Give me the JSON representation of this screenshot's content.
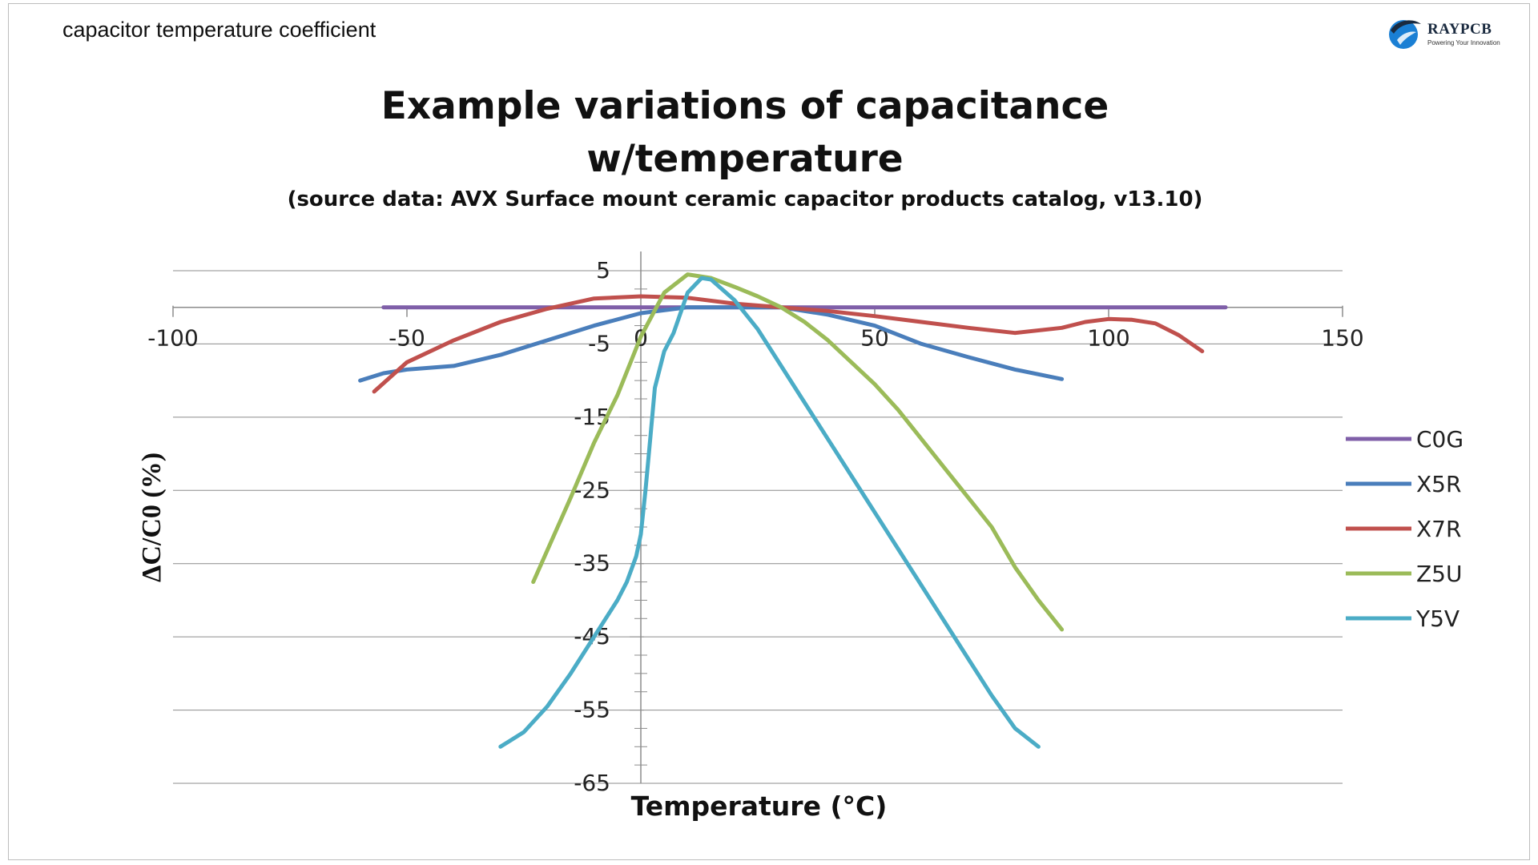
{
  "page": {
    "caption": "capacitor temperature coefficient",
    "brand": {
      "name": "RAYPCB",
      "tagline": "Powering Your Innovation",
      "color": "#1a7fd4"
    }
  },
  "chart_data": {
    "type": "line",
    "title_line1": "Example variations of capacitance",
    "title_line2": "w/temperature",
    "subtitle": "(source data: AVX Surface mount ceramic capacitor products catalog, v13.10)",
    "xlabel": "Temperature (°C)",
    "ylabel": "ΔC/C0 (%)",
    "xlim": [
      -100,
      150
    ],
    "ylim": [
      -65,
      5
    ],
    "xticks": [
      -100,
      -50,
      0,
      50,
      100,
      150
    ],
    "xtick_labels": [
      "-100",
      "-50",
      "0",
      "50",
      "100",
      "150"
    ],
    "yticks": [
      5,
      -5,
      -15,
      -25,
      -35,
      -45,
      -55,
      -65
    ],
    "ytick_labels": [
      "5",
      "-5",
      "-15",
      "-25",
      "-35",
      "-45",
      "-55",
      "-65"
    ],
    "grid": true,
    "legend_position": "right",
    "series": [
      {
        "name": "C0G",
        "color": "#7f5fa8",
        "x": [
          -55,
          0,
          50,
          125
        ],
        "y": [
          0,
          0,
          0,
          0
        ]
      },
      {
        "name": "X5R",
        "color": "#4a7ebb",
        "x": [
          -60,
          -55,
          -50,
          -40,
          -30,
          -20,
          -10,
          0,
          10,
          20,
          30,
          40,
          50,
          60,
          70,
          80,
          90
        ],
        "y": [
          -10,
          -9,
          -8.5,
          -8,
          -6.5,
          -4.5,
          -2.5,
          -0.8,
          0,
          0,
          0,
          -1,
          -2.5,
          -5,
          -6.8,
          -8.5,
          -9.8
        ]
      },
      {
        "name": "X7R",
        "color": "#c0504d",
        "x": [
          -57,
          -50,
          -40,
          -30,
          -20,
          -10,
          0,
          10,
          20,
          30,
          40,
          50,
          60,
          70,
          80,
          90,
          95,
          100,
          105,
          110,
          115,
          120
        ],
        "y": [
          -11.5,
          -7.5,
          -4.5,
          -2,
          -0.2,
          1.2,
          1.5,
          1.3,
          0.5,
          0,
          -0.5,
          -1.2,
          -2,
          -2.8,
          -3.5,
          -2.8,
          -2,
          -1.6,
          -1.7,
          -2.2,
          -3.8,
          -6
        ]
      },
      {
        "name": "Z5U",
        "color": "#9bbb59",
        "x": [
          -23,
          -15,
          -10,
          -5,
          0,
          5,
          10,
          15,
          20,
          25,
          30,
          35,
          40,
          45,
          50,
          55,
          60,
          65,
          70,
          75,
          80,
          85,
          90
        ],
        "y": [
          -37.5,
          -26,
          -18.5,
          -12,
          -4,
          2,
          4.5,
          4,
          2.8,
          1.5,
          0,
          -2,
          -4.5,
          -7.5,
          -10.5,
          -14,
          -18,
          -22,
          -26,
          -30,
          -35.5,
          -40,
          -44
        ]
      },
      {
        "name": "Y5V",
        "color": "#4bacc6",
        "x": [
          -30,
          -25,
          -20,
          -15,
          -10,
          -7,
          -5,
          -3,
          -1,
          0,
          1,
          2,
          3,
          5,
          7,
          10,
          13,
          15,
          20,
          25,
          30,
          35,
          40,
          45,
          50,
          55,
          60,
          65,
          70,
          75,
          80,
          85
        ],
        "y": [
          -60,
          -58,
          -54.5,
          -50,
          -45,
          -42,
          -40,
          -37.5,
          -34,
          -31,
          -25,
          -18,
          -11,
          -6,
          -3.5,
          2,
          4,
          3.8,
          1,
          -3,
          -8,
          -13,
          -18,
          -23,
          -28,
          -33,
          -38,
          -43,
          -48,
          -53,
          -57.5,
          -60
        ]
      }
    ]
  }
}
